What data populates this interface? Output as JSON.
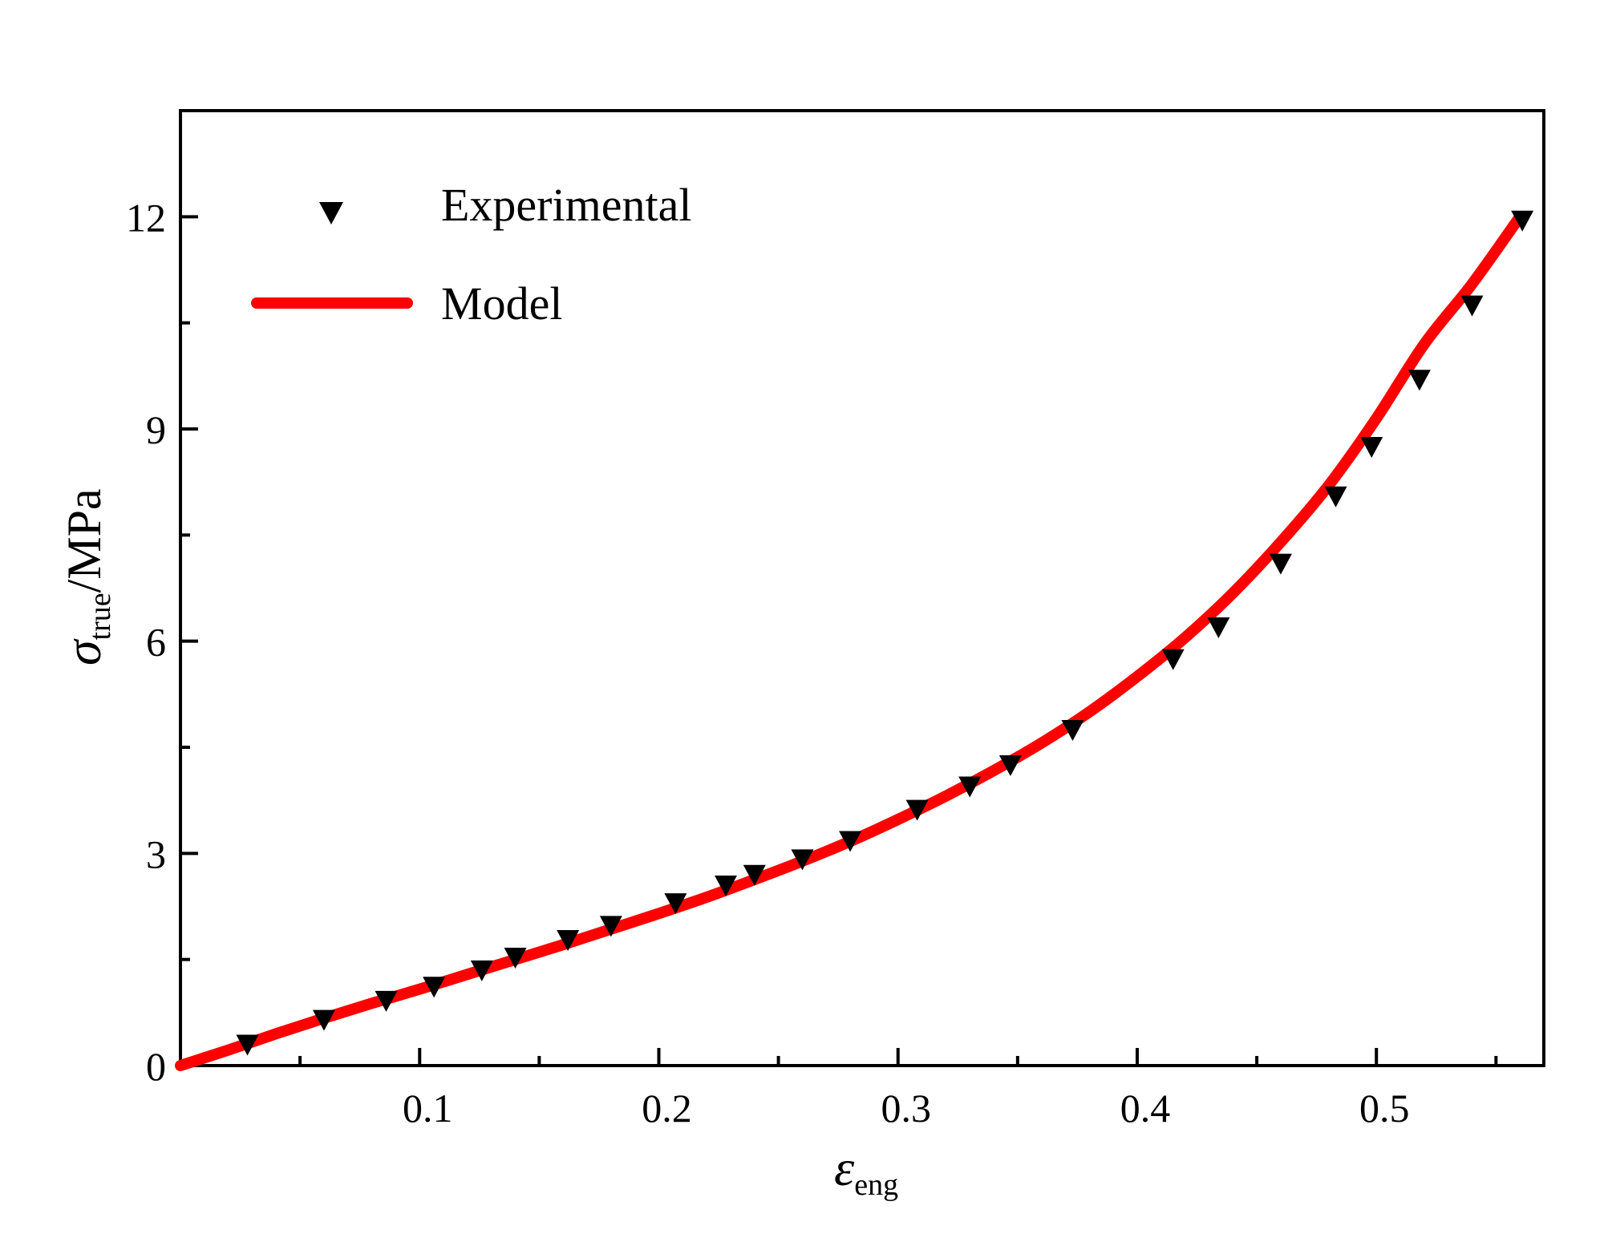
{
  "chart_data": {
    "type": "scatter",
    "xlabel": {
      "symbol": "ε",
      "subscript": "eng"
    },
    "ylabel": {
      "symbol": "σ",
      "subscript": "true",
      "unit": "/MPa"
    },
    "xlim": [
      0,
      0.57
    ],
    "ylim": [
      0,
      13.5
    ],
    "x_ticks": [
      0.1,
      0.2,
      0.3,
      0.4,
      0.5
    ],
    "x_tick_labels": [
      "0.1",
      "0.2",
      "0.3",
      "0.4",
      "0.5"
    ],
    "y_ticks": [
      0,
      3,
      6,
      9,
      12
    ],
    "y_tick_labels": [
      "0",
      "3",
      "6",
      "9",
      "12"
    ],
    "grid": false,
    "legend": {
      "placement": "top-left",
      "entries": [
        {
          "label": "Experimental",
          "marker": "triangle-down",
          "color": "#000000"
        },
        {
          "label": "Model",
          "marker": "line",
          "color": "#ff0000"
        }
      ]
    },
    "series": [
      {
        "name": "Experimental",
        "style": "markers",
        "color": "#000000",
        "x": [
          0.028,
          0.06,
          0.086,
          0.106,
          0.126,
          0.14,
          0.162,
          0.18,
          0.207,
          0.228,
          0.24,
          0.26,
          0.28,
          0.308,
          0.33,
          0.347,
          0.373,
          0.415,
          0.434,
          0.46,
          0.483,
          0.498,
          0.518,
          0.54,
          0.561
        ],
        "y": [
          0.3,
          0.65,
          0.92,
          1.12,
          1.35,
          1.53,
          1.78,
          1.98,
          2.3,
          2.55,
          2.7,
          2.92,
          3.18,
          3.62,
          3.95,
          4.25,
          4.75,
          5.75,
          6.2,
          7.1,
          8.05,
          8.75,
          9.7,
          10.75,
          11.95
        ]
      },
      {
        "name": "Model",
        "style": "line",
        "color": "#ff0000",
        "x": [
          0.0,
          0.02,
          0.04,
          0.06,
          0.08,
          0.1,
          0.12,
          0.14,
          0.16,
          0.18,
          0.2,
          0.22,
          0.24,
          0.26,
          0.28,
          0.3,
          0.32,
          0.34,
          0.36,
          0.38,
          0.4,
          0.42,
          0.44,
          0.46,
          0.48,
          0.5,
          0.52,
          0.54,
          0.56
        ],
        "y": [
          0.0,
          0.22,
          0.45,
          0.67,
          0.88,
          1.08,
          1.29,
          1.5,
          1.71,
          1.93,
          2.15,
          2.38,
          2.63,
          2.89,
          3.17,
          3.48,
          3.81,
          4.17,
          4.56,
          5.0,
          5.5,
          6.05,
          6.68,
          7.4,
          8.2,
          9.15,
          10.2,
          11.05,
          12.0
        ]
      }
    ]
  }
}
